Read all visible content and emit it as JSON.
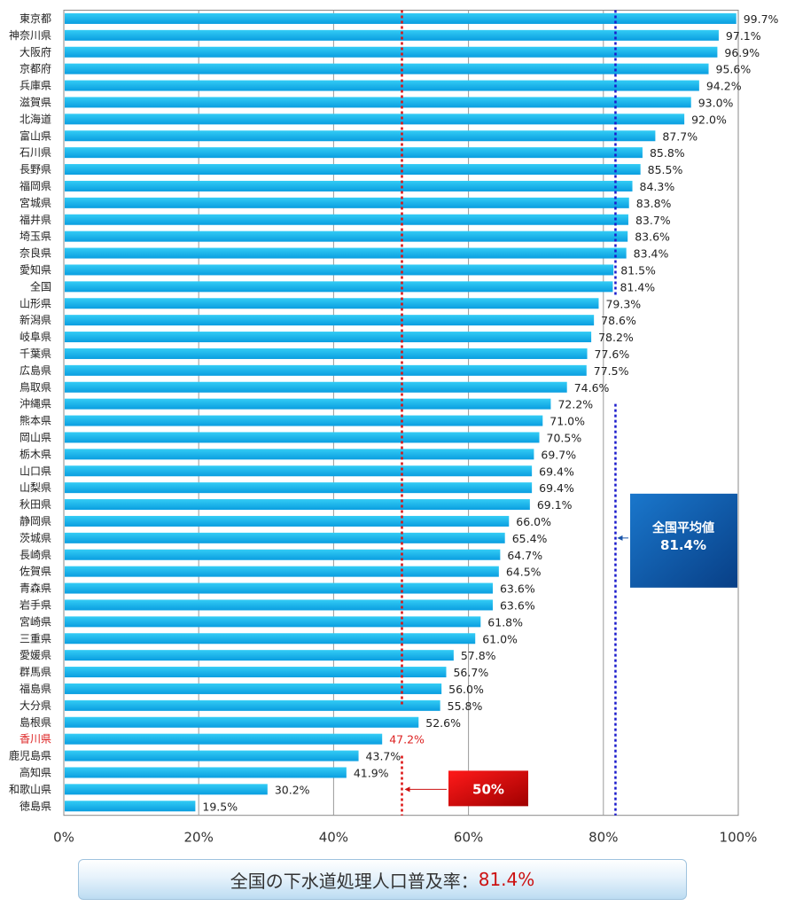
{
  "chart_data": {
    "type": "bar",
    "orientation": "horizontal",
    "categories": [
      "東京都",
      "神奈川県",
      "大阪府",
      "京都府",
      "兵庫県",
      "滋賀県",
      "北海道",
      "富山県",
      "石川県",
      "長野県",
      "福岡県",
      "宮城県",
      "福井県",
      "埼玉県",
      "奈良県",
      "愛知県",
      "全国",
      "山形県",
      "新潟県",
      "岐阜県",
      "千葉県",
      "広島県",
      "鳥取県",
      "沖縄県",
      "熊本県",
      "岡山県",
      "栃木県",
      "山口県",
      "山梨県",
      "秋田県",
      "静岡県",
      "茨城県",
      "長崎県",
      "佐賀県",
      "青森県",
      "岩手県",
      "宮崎県",
      "三重県",
      "愛媛県",
      "群馬県",
      "福島県",
      "大分県",
      "島根県",
      "香川県",
      "鹿児島県",
      "高知県",
      "和歌山県",
      "徳島県"
    ],
    "values": [
      99.7,
      97.1,
      96.9,
      95.6,
      94.2,
      93.0,
      92.0,
      87.7,
      85.8,
      85.5,
      84.3,
      83.8,
      83.7,
      83.6,
      83.4,
      81.5,
      81.4,
      79.3,
      78.6,
      78.2,
      77.6,
      77.5,
      74.6,
      72.2,
      71.0,
      70.5,
      69.7,
      69.4,
      69.4,
      69.1,
      66.0,
      65.4,
      64.7,
      64.5,
      63.6,
      63.6,
      61.8,
      61.0,
      57.8,
      56.7,
      56.0,
      55.8,
      52.6,
      47.2,
      43.7,
      41.9,
      30.2,
      19.5
    ],
    "value_labels": [
      "99.7%",
      "97.1%",
      "96.9%",
      "95.6%",
      "94.2%",
      "93.0%",
      "92.0%",
      "87.7%",
      "85.8%",
      "85.5%",
      "84.3%",
      "83.8%",
      "83.7%",
      "83.6%",
      "83.4%",
      "81.5%",
      "81.4%",
      "79.3%",
      "78.6%",
      "78.2%",
      "77.6%",
      "77.5%",
      "74.6%",
      "72.2%",
      "71.0%",
      "70.5%",
      "69.7%",
      "69.4%",
      "69.4%",
      "69.1%",
      "66.0%",
      "65.4%",
      "64.7%",
      "64.5%",
      "63.6%",
      "63.6%",
      "61.8%",
      "61.0%",
      "57.8%",
      "56.7%",
      "56.0%",
      "55.8%",
      "52.6%",
      "47.2%",
      "43.7%",
      "41.9%",
      "30.2%",
      "19.5%"
    ],
    "highlight_category": "香川県",
    "xlim": [
      0,
      100
    ],
    "x_ticks": [
      0,
      20,
      40,
      60,
      80,
      100
    ],
    "x_tick_labels": [
      "0%",
      "20%",
      "40%",
      "60%",
      "80%",
      "100%"
    ],
    "grid": true,
    "reference_lines": [
      {
        "value": 81.4,
        "color": "#1a1acc",
        "callout_title": "全国平均値",
        "callout_value": "81.4%"
      },
      {
        "value": 50,
        "color": "#dd1111",
        "callout_title": "50%"
      }
    ],
    "colors": {
      "bar_top": "#33ccf5",
      "bar_bottom": "#0a9ee0",
      "highlight_text": "#dd2222",
      "average_box_top": "#1a77cc",
      "average_box_bottom": "#083f86",
      "fifty_box_top": "#ff1a1a",
      "fifty_box_bottom": "#a00000"
    }
  },
  "footer": {
    "label": "全国の下水道処理人口普及率：",
    "value": "81.4%"
  }
}
